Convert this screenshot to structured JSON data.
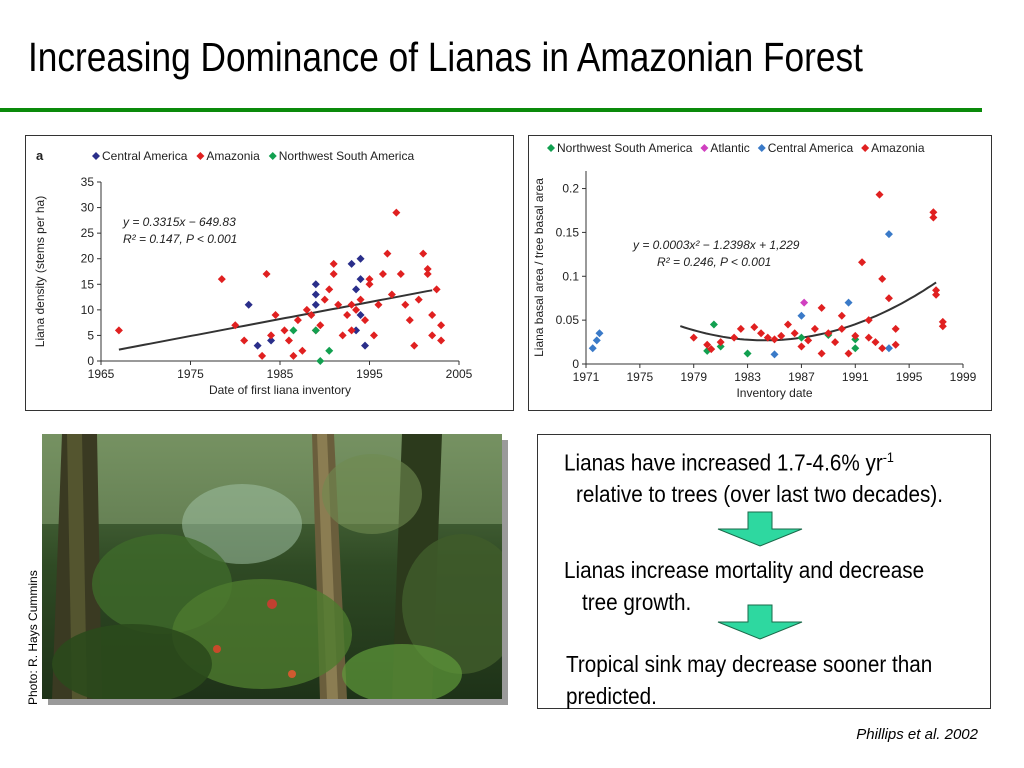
{
  "title": "Increasing Dominance of Lianas in Amazonian Forest",
  "photo_credit": "Photo: R. Hays Cummins",
  "bullets": {
    "b1_line1": "Lianas have increased 1.7-4.6%  yr",
    "b1_sup": "-1",
    "b1_line2": "relative to trees (over last two decades).",
    "b2_line1": "Lianas increase mortality and decrease",
    "b2_line2": "tree growth.",
    "b3_line1": "Tropical sink may decrease sooner than",
    "b3_line2": "predicted."
  },
  "citation": "Phillips et al. 2002",
  "colors": {
    "Central America": "#2a2e8a",
    "Amazonia": "#e02020",
    "Northwest South America": "#12a050",
    "Atlantic": "#d040c0",
    "Central America (b)": "#3a7ac8",
    "accent_green": "#0a8a0a",
    "arrow_fill": "#2ed8a0"
  },
  "chart_data": [
    {
      "type": "scatter",
      "panel_letter": "a",
      "xlabel": "Date of first liana inventory",
      "ylabel": "Liana density (stems per ha)",
      "xlim": [
        1965,
        2005
      ],
      "ylim": [
        0,
        35
      ],
      "xticks": [
        "1965",
        "1975",
        "1985",
        "1995",
        "2005"
      ],
      "yticks": [
        "0",
        "5",
        "10",
        "15",
        "20",
        "25",
        "30",
        "35"
      ],
      "legend": [
        "Central America",
        "Amazonia",
        "Northwest South America"
      ],
      "legend_position": "top",
      "equation": "y = 0.3315x − 649.83",
      "stats": "R² = 0.147, P < 0.001",
      "trend": {
        "kind": "linear",
        "slope": 0.3315,
        "intercept": -649.83,
        "x_range": [
          1967,
          2002
        ]
      },
      "series": [
        {
          "name": "Central America",
          "marker": "diamond",
          "points": [
            [
              1981.5,
              11
            ],
            [
              1982.5,
              3
            ],
            [
              1984,
              4
            ],
            [
              1989,
              15
            ],
            [
              1989,
              13
            ],
            [
              1989,
              11
            ],
            [
              1993,
              19
            ],
            [
              1993.5,
              14
            ],
            [
              1993.5,
              6
            ],
            [
              1994,
              20
            ],
            [
              1994,
              16
            ],
            [
              1994,
              9
            ],
            [
              1994.5,
              3
            ]
          ]
        },
        {
          "name": "Amazonia",
          "marker": "diamond",
          "points": [
            [
              1967,
              6
            ],
            [
              1978.5,
              16
            ],
            [
              1980,
              7
            ],
            [
              1981,
              4
            ],
            [
              1983,
              1
            ],
            [
              1983.5,
              17
            ],
            [
              1984,
              5
            ],
            [
              1984.5,
              9
            ],
            [
              1985.5,
              6
            ],
            [
              1986,
              4
            ],
            [
              1986.5,
              1
            ],
            [
              1987,
              8
            ],
            [
              1987.5,
              2
            ],
            [
              1988,
              10
            ],
            [
              1988.5,
              9
            ],
            [
              1989,
              6
            ],
            [
              1989.5,
              7
            ],
            [
              1990,
              12
            ],
            [
              1990.5,
              14
            ],
            [
              1991,
              19
            ],
            [
              1991,
              17
            ],
            [
              1991.5,
              11
            ],
            [
              1992,
              5
            ],
            [
              1992.5,
              9
            ],
            [
              1993,
              11
            ],
            [
              1993,
              6
            ],
            [
              1993.5,
              10
            ],
            [
              1994,
              12
            ],
            [
              1994.5,
              8
            ],
            [
              1995,
              16
            ],
            [
              1995,
              15
            ],
            [
              1995.5,
              5
            ],
            [
              1996,
              11
            ],
            [
              1996.5,
              17
            ],
            [
              1997,
              21
            ],
            [
              1997.5,
              13
            ],
            [
              1998,
              29
            ],
            [
              1998.5,
              17
            ],
            [
              1999,
              11
            ],
            [
              1999.5,
              8
            ],
            [
              2000,
              3
            ],
            [
              2000.5,
              12
            ],
            [
              2001,
              21
            ],
            [
              2001.5,
              18
            ],
            [
              2001.5,
              17
            ],
            [
              2002,
              9
            ],
            [
              2002,
              5
            ],
            [
              2002.5,
              14
            ],
            [
              2003,
              7
            ],
            [
              2003,
              4
            ]
          ]
        },
        {
          "name": "Northwest South America",
          "marker": "diamond",
          "points": [
            [
              1986.5,
              6
            ],
            [
              1989,
              6
            ],
            [
              1989.5,
              0
            ],
            [
              1990.5,
              2
            ]
          ]
        }
      ]
    },
    {
      "type": "scatter",
      "panel_letter": "",
      "xlabel": "Inventory date",
      "ylabel": "Liana basal area / tree basal area",
      "xlim": [
        1971,
        1999
      ],
      "ylim": [
        0,
        0.22
      ],
      "xticks": [
        "1971",
        "1975",
        "1979",
        "1983",
        "1987",
        "1991",
        "1995",
        "1999"
      ],
      "yticks": [
        "0",
        "0.05",
        "0.1",
        "0.15",
        "0.2"
      ],
      "legend": [
        "Northwest South America",
        "Atlantic",
        "Central America",
        "Amazonia"
      ],
      "legend_position": "top",
      "equation": "y = 0.0003x² − 1.2398x + 1,229",
      "stats": "R² = 0.246, P < 0.001",
      "trend": {
        "kind": "quadratic",
        "vertex_x": 1984.3,
        "vertex_y": 0.027,
        "x_range": [
          1978,
          1997
        ]
      },
      "series": [
        {
          "name": "Northwest South America",
          "marker": "diamond",
          "points": [
            [
              1980,
              0.015
            ],
            [
              1980.5,
              0.045
            ],
            [
              1981,
              0.02
            ],
            [
              1983,
              0.012
            ],
            [
              1987,
              0.03
            ],
            [
              1989,
              0.033
            ],
            [
              1991,
              0.028
            ],
            [
              1991,
              0.018
            ]
          ]
        },
        {
          "name": "Atlantic",
          "marker": "diamond",
          "points": [
            [
              1987.2,
              0.07
            ]
          ]
        },
        {
          "name": "Central America",
          "marker": "diamond",
          "points": [
            [
              1971.5,
              0.018
            ],
            [
              1971.8,
              0.027
            ],
            [
              1972,
              0.035
            ],
            [
              1985,
              0.011
            ],
            [
              1987,
              0.055
            ],
            [
              1990.5,
              0.07
            ],
            [
              1993.5,
              0.148
            ],
            [
              1993.5,
              0.018
            ]
          ]
        },
        {
          "name": "Amazonia",
          "marker": "diamond",
          "points": [
            [
              1979,
              0.03
            ],
            [
              1980,
              0.022
            ],
            [
              1980.3,
              0.017
            ],
            [
              1981,
              0.025
            ],
            [
              1982,
              0.03
            ],
            [
              1982.5,
              0.04
            ],
            [
              1983.5,
              0.042
            ],
            [
              1984,
              0.035
            ],
            [
              1984.5,
              0.03
            ],
            [
              1985,
              0.028
            ],
            [
              1985.5,
              0.032
            ],
            [
              1986,
              0.045
            ],
            [
              1986.5,
              0.035
            ],
            [
              1987,
              0.02
            ],
            [
              1987.5,
              0.027
            ],
            [
              1988,
              0.04
            ],
            [
              1988.5,
              0.064
            ],
            [
              1988.5,
              0.012
            ],
            [
              1989,
              0.035
            ],
            [
              1989.5,
              0.025
            ],
            [
              1990,
              0.055
            ],
            [
              1990,
              0.04
            ],
            [
              1990.5,
              0.012
            ],
            [
              1991,
              0.032
            ],
            [
              1991.5,
              0.116
            ],
            [
              1992,
              0.05
            ],
            [
              1992,
              0.03
            ],
            [
              1992.5,
              0.025
            ],
            [
              1992.8,
              0.193
            ],
            [
              1993,
              0.097
            ],
            [
              1993,
              0.018
            ],
            [
              1993.5,
              0.075
            ],
            [
              1994,
              0.04
            ],
            [
              1994,
              0.022
            ],
            [
              1996.8,
              0.173
            ],
            [
              1996.8,
              0.167
            ],
            [
              1997,
              0.084
            ],
            [
              1997,
              0.079
            ],
            [
              1997.5,
              0.048
            ],
            [
              1997.5,
              0.043
            ]
          ]
        }
      ]
    }
  ]
}
